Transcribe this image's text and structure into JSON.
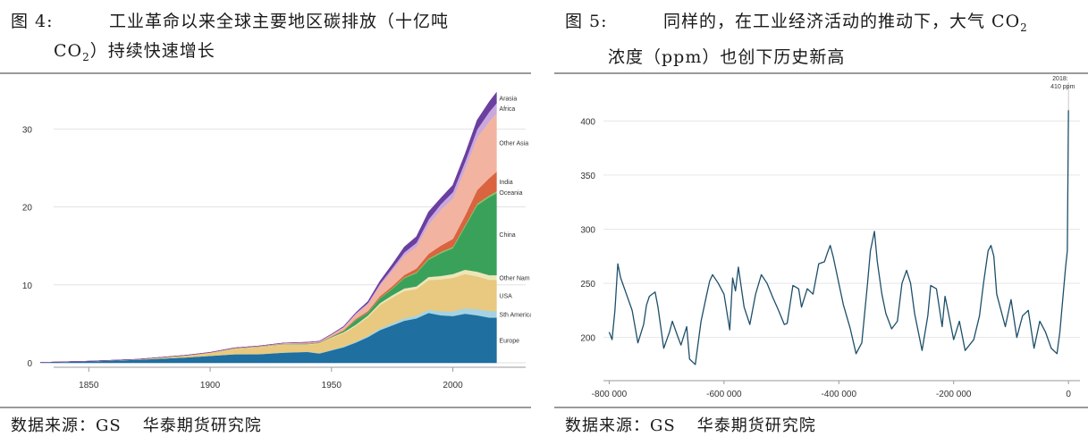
{
  "panels": [
    {
      "caption_num": "图 4:",
      "caption_line1": "工业革命以来全球主要地区碳排放（十亿吨",
      "caption_line2_pre": "CO",
      "caption_line2_sub": "2",
      "caption_line2_post": "）持续快速增长",
      "source_label": "数据来源：GS",
      "source_org": "华泰期货研究院"
    },
    {
      "caption_num": "图 5:",
      "caption_line1_pre": "同样的，在工业经济活动的推动下，大气 CO",
      "caption_line1_sub": "2",
      "caption_line2": "浓度（ppm）也创下历史新高",
      "source_label": "数据来源：GS",
      "source_org": "华泰期货研究院"
    }
  ],
  "chart_data": [
    {
      "type": "area",
      "stacked": true,
      "x": [
        1830,
        1850,
        1870,
        1890,
        1900,
        1910,
        1920,
        1930,
        1940,
        1945,
        1950,
        1955,
        1960,
        1965,
        1970,
        1975,
        1980,
        1985,
        1990,
        1995,
        2000,
        2005,
        2010,
        2015,
        2018
      ],
      "xticks": [
        1850,
        1900,
        1950,
        2000
      ],
      "yticks": [
        0,
        10,
        20,
        30
      ],
      "ylim": [
        0,
        36
      ],
      "xlim": [
        1830,
        2030
      ],
      "series": [
        {
          "name": "Europe",
          "color": "#1f6fa0",
          "values": [
            0.05,
            0.2,
            0.4,
            0.7,
            0.9,
            1.1,
            1.1,
            1.3,
            1.4,
            1.2,
            1.6,
            2.0,
            2.6,
            3.3,
            4.2,
            4.8,
            5.4,
            5.7,
            6.4,
            6.1,
            6.0,
            6.3,
            6.1,
            5.8,
            5.8
          ]
        },
        {
          "name": "Sth America",
          "color": "#a6d3e3",
          "values": [
            0,
            0,
            0,
            0,
            0,
            0.01,
            0.02,
            0.03,
            0.04,
            0.05,
            0.07,
            0.1,
            0.13,
            0.17,
            0.22,
            0.27,
            0.32,
            0.36,
            0.42,
            0.5,
            0.6,
            0.7,
            0.8,
            0.85,
            0.85
          ]
        },
        {
          "name": "USA",
          "color": "#e8c97f",
          "values": [
            0,
            0.01,
            0.05,
            0.25,
            0.4,
            0.7,
            0.9,
            1.0,
            0.9,
            1.2,
            1.5,
            1.7,
            2.0,
            2.4,
            3.0,
            3.3,
            3.5,
            3.4,
            3.8,
            4.1,
            4.3,
            4.4,
            4.2,
            4.0,
            4.0
          ]
        },
        {
          "name": "Other Nam",
          "color": "#eee6b8",
          "values": [
            0,
            0,
            0,
            0.01,
            0.02,
            0.04,
            0.05,
            0.05,
            0.06,
            0.08,
            0.1,
            0.13,
            0.16,
            0.2,
            0.25,
            0.3,
            0.33,
            0.35,
            0.4,
            0.45,
            0.5,
            0.55,
            0.6,
            0.6,
            0.6
          ]
        },
        {
          "name": "China",
          "color": "#3aa15b",
          "values": [
            0,
            0,
            0,
            0,
            0,
            0,
            0.01,
            0.02,
            0.03,
            0.03,
            0.05,
            0.15,
            0.6,
            0.35,
            0.6,
            0.8,
            1.3,
            1.7,
            2.2,
            2.9,
            3.3,
            5.5,
            8.5,
            10.0,
            10.5
          ]
        },
        {
          "name": "Oceania",
          "color": "#8ec06a",
          "values": [
            0,
            0,
            0,
            0,
            0,
            0.01,
            0.01,
            0.01,
            0.02,
            0.02,
            0.03,
            0.04,
            0.05,
            0.06,
            0.08,
            0.1,
            0.12,
            0.14,
            0.16,
            0.18,
            0.2,
            0.22,
            0.24,
            0.25,
            0.26
          ]
        },
        {
          "name": "India",
          "color": "#d9643f",
          "values": [
            0,
            0,
            0,
            0,
            0,
            0.01,
            0.01,
            0.02,
            0.03,
            0.03,
            0.05,
            0.07,
            0.1,
            0.15,
            0.2,
            0.25,
            0.3,
            0.45,
            0.6,
            0.8,
            1.0,
            1.2,
            1.7,
            2.2,
            2.5
          ]
        },
        {
          "name": "Other Asia",
          "color": "#f2b4a0",
          "values": [
            0,
            0,
            0,
            0.01,
            0.02,
            0.04,
            0.05,
            0.08,
            0.12,
            0.12,
            0.2,
            0.35,
            0.6,
            0.9,
            1.4,
            2.0,
            2.5,
            2.8,
            3.8,
            4.6,
            5.2,
            6.0,
            6.8,
            7.3,
            7.5
          ]
        },
        {
          "name": "Africa",
          "color": "#c9a8e0",
          "values": [
            0,
            0,
            0,
            0,
            0,
            0.01,
            0.01,
            0.02,
            0.03,
            0.03,
            0.05,
            0.07,
            0.1,
            0.15,
            0.2,
            0.3,
            0.4,
            0.5,
            0.6,
            0.7,
            0.8,
            0.9,
            1.0,
            1.2,
            1.3
          ]
        },
        {
          "name": "Arasia",
          "color": "#6b3fa0",
          "values": [
            0,
            0,
            0,
            0,
            0,
            0,
            0,
            0.01,
            0.02,
            0.02,
            0.04,
            0.07,
            0.1,
            0.2,
            0.35,
            0.5,
            0.7,
            0.8,
            1.0,
            0.8,
            0.9,
            1.0,
            1.2,
            1.3,
            1.4
          ]
        }
      ]
    },
    {
      "type": "line",
      "xlim": [
        -810000,
        20000
      ],
      "ylim": [
        170,
        430
      ],
      "xticks": [
        -800000,
        -600000,
        -400000,
        -200000,
        0
      ],
      "xtick_labels": [
        "-800 000",
        "-600 000",
        "-400 000",
        "-200 000",
        "0"
      ],
      "yticks": [
        200,
        250,
        300,
        350,
        400
      ],
      "line_color": "#1d4f6a",
      "annotation": {
        "line1": "2018:",
        "line2": "410 ppm",
        "x": 0,
        "y": 410
      },
      "x": [
        -800000,
        -795000,
        -790000,
        -785000,
        -780000,
        -770000,
        -760000,
        -750000,
        -740000,
        -735000,
        -730000,
        -720000,
        -715000,
        -705000,
        -695000,
        -690000,
        -680000,
        -675000,
        -665000,
        -660000,
        -650000,
        -640000,
        -630000,
        -625000,
        -620000,
        -610000,
        -600000,
        -590000,
        -585000,
        -580000,
        -575000,
        -565000,
        -555000,
        -545000,
        -535000,
        -525000,
        -515000,
        -505000,
        -495000,
        -490000,
        -480000,
        -470000,
        -465000,
        -455000,
        -445000,
        -435000,
        -425000,
        -420000,
        -415000,
        -410000,
        -400000,
        -392000,
        -380000,
        -370000,
        -360000,
        -350000,
        -345000,
        -338000,
        -333000,
        -325000,
        -318000,
        -308000,
        -298000,
        -290000,
        -282000,
        -275000,
        -268000,
        -255000,
        -245000,
        -240000,
        -230000,
        -220000,
        -215000,
        -210000,
        -200000,
        -190000,
        -180000,
        -165000,
        -155000,
        -148000,
        -140000,
        -135000,
        -130000,
        -125000,
        -120000,
        -110000,
        -100000,
        -90000,
        -80000,
        -70000,
        -60000,
        -50000,
        -40000,
        -30000,
        -20000,
        -15000,
        -10000,
        -5000,
        -2000,
        0
      ],
      "y": [
        205,
        198,
        225,
        268,
        255,
        240,
        225,
        195,
        212,
        230,
        238,
        242,
        228,
        190,
        205,
        215,
        200,
        193,
        210,
        180,
        175,
        215,
        240,
        252,
        258,
        250,
        240,
        207,
        255,
        243,
        265,
        228,
        212,
        240,
        258,
        250,
        237,
        225,
        212,
        213,
        248,
        245,
        228,
        245,
        240,
        268,
        270,
        278,
        285,
        275,
        250,
        230,
        208,
        185,
        195,
        250,
        280,
        298,
        270,
        240,
        222,
        208,
        215,
        250,
        262,
        250,
        222,
        188,
        220,
        248,
        245,
        210,
        238,
        225,
        198,
        215,
        188,
        198,
        220,
        250,
        280,
        285,
        275,
        240,
        230,
        210,
        235,
        200,
        220,
        225,
        190,
        215,
        205,
        190,
        185,
        205,
        235,
        265,
        280,
        410
      ]
    }
  ]
}
